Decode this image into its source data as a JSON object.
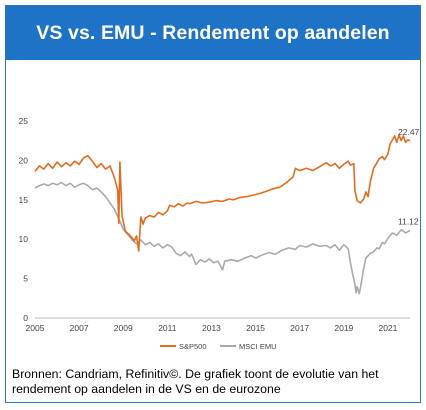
{
  "title": "VS vs. EMU - Rendement op aandelen",
  "source_lines": [
    "Bronnen: Candriam, Refinitiv©. De grafiek toont de evolutie van het",
    "rendement op aandelen in de VS en de eurozone"
  ],
  "colors": {
    "banner": "#1f73c6",
    "sp500": "#e46c1f",
    "msci_emu": "#aaaaaa",
    "axis": "#bfbfbf"
  },
  "chart_data": {
    "type": "line",
    "xlim": [
      2005,
      2022
    ],
    "ylim": [
      0,
      25
    ],
    "x_ticks": [
      "2005",
      "2007",
      "2009",
      "2011",
      "2013",
      "2015",
      "2017",
      "2019",
      "2021"
    ],
    "y_ticks": [
      "0",
      "5",
      "10",
      "15",
      "20",
      "25"
    ],
    "legend_position": "bottom",
    "end_labels": {
      "sp500": "22.47",
      "msci_emu": "11.12"
    },
    "series": [
      {
        "key": "sp500",
        "name": "S&P500",
        "points": [
          [
            2005.0,
            18.6
          ],
          [
            2005.2,
            19.3
          ],
          [
            2005.4,
            18.9
          ],
          [
            2005.6,
            19.6
          ],
          [
            2005.8,
            19.0
          ],
          [
            2006.0,
            19.8
          ],
          [
            2006.2,
            19.2
          ],
          [
            2006.4,
            19.7
          ],
          [
            2006.6,
            19.3
          ],
          [
            2006.8,
            19.9
          ],
          [
            2007.0,
            19.5
          ],
          [
            2007.2,
            20.3
          ],
          [
            2007.4,
            20.6
          ],
          [
            2007.6,
            19.9
          ],
          [
            2007.8,
            19.1
          ],
          [
            2008.0,
            19.6
          ],
          [
            2008.2,
            18.9
          ],
          [
            2008.4,
            19.3
          ],
          [
            2008.6,
            17.8
          ],
          [
            2008.75,
            16.2
          ],
          [
            2008.8,
            12.0
          ],
          [
            2008.85,
            19.8
          ],
          [
            2008.95,
            12.9
          ],
          [
            2009.1,
            11.0
          ],
          [
            2009.3,
            10.5
          ],
          [
            2009.5,
            9.8
          ],
          [
            2009.6,
            10.4
          ],
          [
            2009.7,
            8.5
          ],
          [
            2009.8,
            12.8
          ],
          [
            2009.9,
            11.9
          ],
          [
            2010.0,
            12.7
          ],
          [
            2010.2,
            13.0
          ],
          [
            2010.4,
            12.8
          ],
          [
            2010.6,
            13.4
          ],
          [
            2010.8,
            13.1
          ],
          [
            2011.0,
            13.6
          ],
          [
            2011.1,
            14.3
          ],
          [
            2011.3,
            14.1
          ],
          [
            2011.5,
            14.5
          ],
          [
            2011.7,
            14.2
          ],
          [
            2011.9,
            14.6
          ],
          [
            2012.0,
            14.5
          ],
          [
            2012.3,
            14.8
          ],
          [
            2012.6,
            14.6
          ],
          [
            2012.9,
            14.7
          ],
          [
            2013.2,
            14.9
          ],
          [
            2013.5,
            14.8
          ],
          [
            2013.8,
            15.1
          ],
          [
            2014.0,
            15.0
          ],
          [
            2014.3,
            15.3
          ],
          [
            2014.6,
            15.4
          ],
          [
            2014.9,
            15.6
          ],
          [
            2015.2,
            15.8
          ],
          [
            2015.5,
            16.1
          ],
          [
            2015.8,
            16.4
          ],
          [
            2016.1,
            16.6
          ],
          [
            2016.4,
            17.2
          ],
          [
            2016.7,
            17.9
          ],
          [
            2016.8,
            19.0
          ],
          [
            2017.0,
            18.7
          ],
          [
            2017.3,
            19.0
          ],
          [
            2017.6,
            18.7
          ],
          [
            2017.9,
            19.2
          ],
          [
            2018.2,
            19.7
          ],
          [
            2018.4,
            19.3
          ],
          [
            2018.6,
            19.6
          ],
          [
            2018.8,
            19.0
          ],
          [
            2019.0,
            19.5
          ],
          [
            2019.2,
            19.9
          ],
          [
            2019.3,
            19.4
          ],
          [
            2019.45,
            19.6
          ],
          [
            2019.5,
            16.2
          ],
          [
            2019.6,
            14.9
          ],
          [
            2019.75,
            14.6
          ],
          [
            2019.9,
            15.1
          ],
          [
            2020.0,
            16.0
          ],
          [
            2020.1,
            15.4
          ],
          [
            2020.2,
            17.3
          ],
          [
            2020.35,
            19.0
          ],
          [
            2020.5,
            19.7
          ],
          [
            2020.6,
            20.2
          ],
          [
            2020.75,
            20.5
          ],
          [
            2020.85,
            20.1
          ],
          [
            2021.0,
            20.8
          ],
          [
            2021.1,
            22.1
          ],
          [
            2021.2,
            22.6
          ],
          [
            2021.3,
            23.1
          ],
          [
            2021.4,
            22.3
          ],
          [
            2021.5,
            23.2
          ],
          [
            2021.6,
            22.5
          ],
          [
            2021.7,
            23.1
          ],
          [
            2021.8,
            22.3
          ],
          [
            2021.9,
            22.6
          ],
          [
            2022.0,
            22.47
          ]
        ]
      },
      {
        "key": "msci_emu",
        "name": "MSCI EMU",
        "points": [
          [
            2005.0,
            16.5
          ],
          [
            2005.2,
            16.8
          ],
          [
            2005.4,
            17.0
          ],
          [
            2005.6,
            16.8
          ],
          [
            2005.8,
            17.1
          ],
          [
            2006.0,
            16.9
          ],
          [
            2006.2,
            17.2
          ],
          [
            2006.4,
            16.8
          ],
          [
            2006.6,
            17.1
          ],
          [
            2006.8,
            16.6
          ],
          [
            2007.0,
            16.9
          ],
          [
            2007.2,
            17.1
          ],
          [
            2007.4,
            16.8
          ],
          [
            2007.6,
            16.3
          ],
          [
            2007.8,
            16.5
          ],
          [
            2008.0,
            16.0
          ],
          [
            2008.2,
            15.4
          ],
          [
            2008.4,
            14.6
          ],
          [
            2008.6,
            13.8
          ],
          [
            2008.8,
            12.6
          ],
          [
            2009.0,
            11.3
          ],
          [
            2009.2,
            10.6
          ],
          [
            2009.4,
            9.9
          ],
          [
            2009.6,
            9.4
          ],
          [
            2009.8,
            9.9
          ],
          [
            2010.0,
            9.3
          ],
          [
            2010.2,
            9.6
          ],
          [
            2010.4,
            9.1
          ],
          [
            2010.6,
            9.4
          ],
          [
            2010.8,
            8.9
          ],
          [
            2011.0,
            9.3
          ],
          [
            2011.2,
            9.0
          ],
          [
            2011.4,
            8.2
          ],
          [
            2011.6,
            7.9
          ],
          [
            2011.8,
            8.4
          ],
          [
            2012.0,
            7.8
          ],
          [
            2012.1,
            8.1
          ],
          [
            2012.3,
            6.8
          ],
          [
            2012.5,
            7.4
          ],
          [
            2012.7,
            7.1
          ],
          [
            2012.9,
            7.5
          ],
          [
            2013.1,
            7.0
          ],
          [
            2013.3,
            7.2
          ],
          [
            2013.5,
            6.1
          ],
          [
            2013.6,
            7.2
          ],
          [
            2013.9,
            7.4
          ],
          [
            2014.2,
            7.2
          ],
          [
            2014.5,
            7.6
          ],
          [
            2014.8,
            7.9
          ],
          [
            2015.0,
            7.6
          ],
          [
            2015.3,
            8.0
          ],
          [
            2015.6,
            8.3
          ],
          [
            2015.9,
            8.1
          ],
          [
            2016.2,
            8.6
          ],
          [
            2016.5,
            8.9
          ],
          [
            2016.8,
            8.7
          ],
          [
            2017.0,
            9.2
          ],
          [
            2017.3,
            9.0
          ],
          [
            2017.6,
            9.4
          ],
          [
            2017.9,
            9.1
          ],
          [
            2018.2,
            9.2
          ],
          [
            2018.4,
            8.9
          ],
          [
            2018.6,
            9.3
          ],
          [
            2018.8,
            8.6
          ],
          [
            2019.0,
            9.3
          ],
          [
            2019.2,
            8.8
          ],
          [
            2019.3,
            7.0
          ],
          [
            2019.4,
            5.6
          ],
          [
            2019.5,
            4.3
          ],
          [
            2019.55,
            3.2
          ],
          [
            2019.6,
            4.0
          ],
          [
            2019.7,
            3.1
          ],
          [
            2019.8,
            4.6
          ],
          [
            2019.9,
            6.3
          ],
          [
            2020.0,
            7.6
          ],
          [
            2020.2,
            8.2
          ],
          [
            2020.35,
            8.4
          ],
          [
            2020.5,
            8.9
          ],
          [
            2020.6,
            8.8
          ],
          [
            2020.75,
            9.6
          ],
          [
            2020.85,
            9.4
          ],
          [
            2021.0,
            10.1
          ],
          [
            2021.2,
            10.8
          ],
          [
            2021.4,
            10.5
          ],
          [
            2021.6,
            11.2
          ],
          [
            2021.8,
            10.8
          ],
          [
            2022.0,
            11.12
          ]
        ]
      }
    ]
  }
}
